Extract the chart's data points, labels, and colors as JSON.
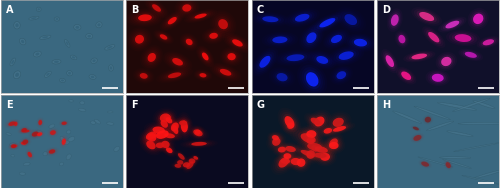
{
  "panels": [
    "A",
    "B",
    "C",
    "D",
    "E",
    "F",
    "G",
    "H"
  ],
  "grid": [
    2,
    4
  ],
  "bg_colors": [
    "#3a6880",
    "#200808",
    "#060625",
    "#10102a",
    "#3a6880",
    "#0a0a20",
    "#0a1828",
    "#3a6880"
  ],
  "label_color": "#ffffff",
  "label_fontsize": 7,
  "border_color": "#aaaaaa",
  "border_width": 0.5
}
